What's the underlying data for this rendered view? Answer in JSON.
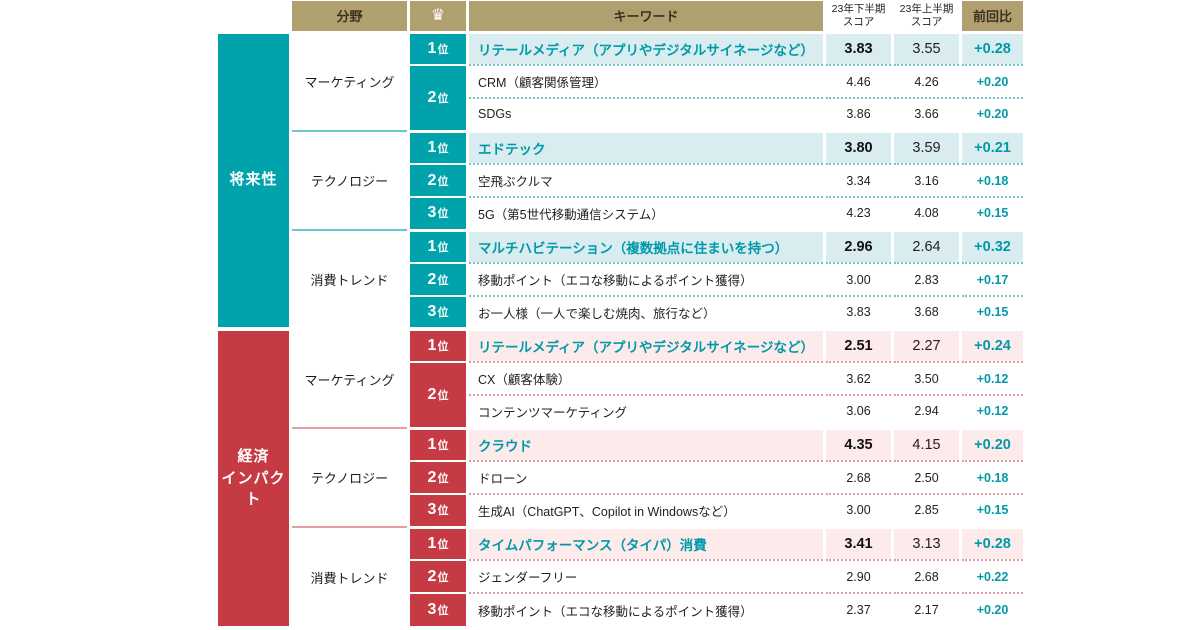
{
  "header": {
    "category": "分野",
    "keyword": "キーワード",
    "score_h2": "23年下半期\nスコア",
    "score_h1": "23年上半期\nスコア",
    "diff": "前回比"
  },
  "icons": {
    "crown": "♛"
  },
  "colors": {
    "header_bg": "#b1a06f",
    "teal": "#00a3ac",
    "teal_tint": "#d9edf0",
    "red": "#c63a43",
    "red_tint": "#fcebea",
    "accent_text": "#0099a9"
  },
  "sections": [
    {
      "label": "将来性",
      "categories": [
        {
          "name": "マーケティング",
          "rows": [
            {
              "rank_num": "1",
              "rank_unit": "位",
              "keyword": "リテールメディア（アプリやデジタルサイネージなど）",
              "score_h2": "3.83",
              "score_h1": "3.55",
              "diff": "+0.28"
            },
            {
              "rank_num": "2",
              "rank_unit": "位",
              "keyword": "CRM（顧客関係管理）",
              "score_h2": "4.46",
              "score_h1": "4.26",
              "diff": "+0.20"
            },
            {
              "keyword": "SDGs",
              "score_h2": "3.86",
              "score_h1": "3.66",
              "diff": "+0.20"
            }
          ]
        },
        {
          "name": "テクノロジー",
          "rows": [
            {
              "rank_num": "1",
              "rank_unit": "位",
              "keyword": "エドテック",
              "score_h2": "3.80",
              "score_h1": "3.59",
              "diff": "+0.21"
            },
            {
              "rank_num": "2",
              "rank_unit": "位",
              "keyword": "空飛ぶクルマ",
              "score_h2": "3.34",
              "score_h1": "3.16",
              "diff": "+0.18"
            },
            {
              "rank_num": "3",
              "rank_unit": "位",
              "keyword": "5G（第5世代移動通信システム）",
              "score_h2": "4.23",
              "score_h1": "4.08",
              "diff": "+0.15"
            }
          ]
        },
        {
          "name": "消費トレンド",
          "rows": [
            {
              "rank_num": "1",
              "rank_unit": "位",
              "keyword": "マルチハビテーション（複数拠点に住まいを持つ）",
              "score_h2": "2.96",
              "score_h1": "2.64",
              "diff": "+0.32"
            },
            {
              "rank_num": "2",
              "rank_unit": "位",
              "keyword": "移動ポイント（エコな移動によるポイント獲得）",
              "score_h2": "3.00",
              "score_h1": "2.83",
              "diff": "+0.17"
            },
            {
              "rank_num": "3",
              "rank_unit": "位",
              "keyword": "お一人様（一人で楽しむ焼肉、旅行など）",
              "score_h2": "3.83",
              "score_h1": "3.68",
              "diff": "+0.15"
            }
          ]
        }
      ]
    },
    {
      "label": "経済\nインパクト",
      "categories": [
        {
          "name": "マーケティング",
          "rows": [
            {
              "rank_num": "1",
              "rank_unit": "位",
              "keyword": "リテールメディア（アプリやデジタルサイネージなど）",
              "score_h2": "2.51",
              "score_h1": "2.27",
              "diff": "+0.24"
            },
            {
              "rank_num": "2",
              "rank_unit": "位",
              "keyword": "CX（顧客体験）",
              "score_h2": "3.62",
              "score_h1": "3.50",
              "diff": "+0.12"
            },
            {
              "keyword": "コンテンツマーケティング",
              "score_h2": "3.06",
              "score_h1": "2.94",
              "diff": "+0.12"
            }
          ]
        },
        {
          "name": "テクノロジー",
          "rows": [
            {
              "rank_num": "1",
              "rank_unit": "位",
              "keyword": "クラウド",
              "score_h2": "4.35",
              "score_h1": "4.15",
              "diff": "+0.20"
            },
            {
              "rank_num": "2",
              "rank_unit": "位",
              "keyword": "ドローン",
              "score_h2": "2.68",
              "score_h1": "2.50",
              "diff": "+0.18"
            },
            {
              "rank_num": "3",
              "rank_unit": "位",
              "keyword": "生成AI（ChatGPT、Copilot in Windowsなど）",
              "score_h2": "3.00",
              "score_h1": "2.85",
              "diff": "+0.15"
            }
          ]
        },
        {
          "name": "消費トレンド",
          "rows": [
            {
              "rank_num": "1",
              "rank_unit": "位",
              "keyword": "タイムパフォーマンス（タイパ）消費",
              "score_h2": "3.41",
              "score_h1": "3.13",
              "diff": "+0.28"
            },
            {
              "rank_num": "2",
              "rank_unit": "位",
              "keyword": "ジェンダーフリー",
              "score_h2": "2.90",
              "score_h1": "2.68",
              "diff": "+0.22"
            },
            {
              "rank_num": "3",
              "rank_unit": "位",
              "keyword": "移動ポイント（エコな移動によるポイント獲得）",
              "score_h2": "2.37",
              "score_h1": "2.17",
              "diff": "+0.20"
            }
          ]
        }
      ]
    }
  ],
  "chart_data": {
    "type": "table",
    "columns": [
      "section",
      "分野",
      "rank",
      "キーワード",
      "23年下半期スコア",
      "23年上半期スコア",
      "前回比"
    ],
    "rows": [
      [
        "将来性",
        "マーケティング",
        "1位",
        "リテールメディア（アプリやデジタルサイネージなど）",
        3.83,
        3.55,
        "+0.28"
      ],
      [
        "将来性",
        "マーケティング",
        "2位",
        "CRM（顧客関係管理）",
        4.46,
        4.26,
        "+0.20"
      ],
      [
        "将来性",
        "マーケティング",
        "2位",
        "SDGs",
        3.86,
        3.66,
        "+0.20"
      ],
      [
        "将来性",
        "テクノロジー",
        "1位",
        "エドテック",
        3.8,
        3.59,
        "+0.21"
      ],
      [
        "将来性",
        "テクノロジー",
        "2位",
        "空飛ぶクルマ",
        3.34,
        3.16,
        "+0.18"
      ],
      [
        "将来性",
        "テクノロジー",
        "3位",
        "5G（第5世代移動通信システム）",
        4.23,
        4.08,
        "+0.15"
      ],
      [
        "将来性",
        "消費トレンド",
        "1位",
        "マルチハビテーション（複数拠点に住まいを持つ）",
        2.96,
        2.64,
        "+0.32"
      ],
      [
        "将来性",
        "消費トレンド",
        "2位",
        "移動ポイント（エコな移動によるポイント獲得）",
        3.0,
        2.83,
        "+0.17"
      ],
      [
        "将来性",
        "消費トレンド",
        "3位",
        "お一人様（一人で楽しむ焼肉、旅行など）",
        3.83,
        3.68,
        "+0.15"
      ],
      [
        "経済インパクト",
        "マーケティング",
        "1位",
        "リテールメディア（アプリやデジタルサイネージなど）",
        2.51,
        2.27,
        "+0.24"
      ],
      [
        "経済インパクト",
        "マーケティング",
        "2位",
        "CX（顧客体験）",
        3.62,
        3.5,
        "+0.12"
      ],
      [
        "経済インパクト",
        "マーケティング",
        "2位",
        "コンテンツマーケティング",
        3.06,
        2.94,
        "+0.12"
      ],
      [
        "経済インパクト",
        "テクノロジー",
        "1位",
        "クラウド",
        4.35,
        4.15,
        "+0.20"
      ],
      [
        "経済インパクト",
        "テクノロジー",
        "2位",
        "ドローン",
        2.68,
        2.5,
        "+0.18"
      ],
      [
        "経済インパクト",
        "テクノロジー",
        "3位",
        "生成AI（ChatGPT、Copilot in Windowsなど）",
        3.0,
        2.85,
        "+0.15"
      ],
      [
        "経済インパクト",
        "消費トレンド",
        "1位",
        "タイムパフォーマンス（タイパ）消費",
        3.41,
        3.13,
        "+0.28"
      ],
      [
        "経済インパクト",
        "消費トレンド",
        "2位",
        "ジェンダーフリー",
        2.9,
        2.68,
        "+0.22"
      ],
      [
        "経済インパクト",
        "消費トレンド",
        "3位",
        "移動ポイント（エコな移動によるポイント獲得）",
        2.37,
        2.17,
        "+0.20"
      ]
    ]
  }
}
